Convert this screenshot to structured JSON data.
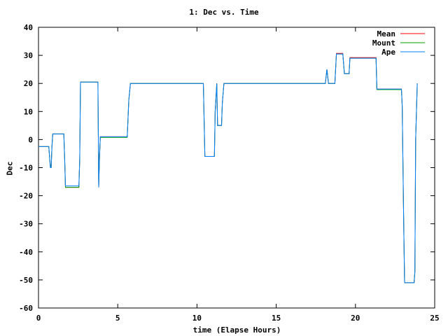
{
  "chart_data": {
    "type": "line",
    "title": "1: Dec vs. Time",
    "xlabel": "time (Elapse Hours)",
    "ylabel": "Dec",
    "xlim": [
      0,
      25
    ],
    "ylim": [
      -60,
      40
    ],
    "xticks": [
      0,
      5,
      10,
      15,
      20,
      25
    ],
    "yticks": [
      -60,
      -50,
      -40,
      -30,
      -20,
      -10,
      0,
      10,
      20,
      30,
      40
    ],
    "grid": false,
    "legend_position": "top-right",
    "series": [
      {
        "name": "Mean",
        "color": "#ff0000",
        "x": [
          0,
          0.65,
          0.75,
          0.8,
          0.85,
          0.9,
          1.0,
          1.6,
          1.65,
          1.7,
          2.55,
          2.6,
          2.65,
          3.75,
          3.8,
          3.85,
          3.9,
          4.0,
          5.6,
          5.7,
          5.8,
          10.4,
          10.5,
          11.1,
          11.15,
          11.25,
          11.3,
          11.55,
          11.6,
          11.7,
          18.1,
          18.2,
          18.3,
          18.7,
          18.8,
          19.2,
          19.3,
          19.6,
          19.65,
          21.3,
          21.35,
          22.9,
          22.95,
          23.05,
          23.1,
          23.7,
          23.75,
          23.8,
          23.9
        ],
        "y": [
          -2.5,
          -2.5,
          -10,
          -10,
          -2.5,
          2,
          2,
          2,
          -7,
          -17,
          -17,
          -7,
          20.5,
          20.5,
          -17,
          -6,
          1,
          1,
          1,
          14,
          20,
          20,
          -6,
          -6,
          10,
          20,
          5,
          5,
          13,
          20,
          20,
          25,
          20,
          20,
          30.7,
          30.7,
          23.5,
          23.5,
          29.2,
          29.2,
          18,
          18,
          12,
          -33,
          -51,
          -51,
          -47,
          0,
          20
        ]
      },
      {
        "name": "Mount",
        "color": "#00a000",
        "x": [
          0,
          0.65,
          0.75,
          0.8,
          0.85,
          0.9,
          1.0,
          1.6,
          1.65,
          1.7,
          2.55,
          2.6,
          2.65,
          3.75,
          3.8,
          3.85,
          3.9,
          4.0,
          5.6,
          5.7,
          5.8,
          10.4,
          10.5,
          11.1,
          11.15,
          11.25,
          11.3,
          11.55,
          11.6,
          11.7,
          18.1,
          18.2,
          18.3,
          18.7,
          18.8,
          19.2,
          19.3,
          19.6,
          19.65,
          21.3,
          21.35,
          22.9,
          22.95,
          23.05,
          23.1,
          23.7,
          23.75,
          23.8,
          23.9
        ],
        "y": [
          -2.5,
          -2.5,
          -10,
          -10,
          -2.5,
          2,
          2,
          2,
          -7,
          -17,
          -17,
          -7,
          20.5,
          20.5,
          -17,
          -6,
          0.8,
          0.8,
          0.8,
          14,
          20,
          20,
          -6,
          -6,
          10,
          20,
          5,
          5,
          13,
          20,
          20,
          25,
          20,
          20,
          30.5,
          30.5,
          23.5,
          23.5,
          29,
          29,
          17.8,
          17.8,
          12,
          -33,
          -51,
          -51,
          -47,
          0,
          20
        ]
      },
      {
        "name": "Ape",
        "color": "#0080ff",
        "x": [
          0,
          0.65,
          0.75,
          0.8,
          0.85,
          0.9,
          1.0,
          1.6,
          1.65,
          1.7,
          2.55,
          2.6,
          2.65,
          3.75,
          3.8,
          3.85,
          3.9,
          4.0,
          5.6,
          5.7,
          5.8,
          10.4,
          10.5,
          11.1,
          11.15,
          11.25,
          11.3,
          11.55,
          11.6,
          11.7,
          18.1,
          18.2,
          18.3,
          18.7,
          18.8,
          19.2,
          19.3,
          19.6,
          19.65,
          21.3,
          21.35,
          22.9,
          22.95,
          23.05,
          23.1,
          23.7,
          23.75,
          23.8,
          23.9
        ],
        "y": [
          -2.5,
          -2.5,
          -10,
          -10,
          -2.5,
          2,
          2,
          2,
          -7,
          -16.5,
          -16.5,
          -7,
          20.5,
          20.5,
          -17,
          -6,
          1,
          1,
          1,
          14,
          20,
          20,
          -6,
          -6,
          10,
          20,
          5,
          5,
          13,
          20,
          20,
          25,
          20,
          20,
          30.5,
          30.5,
          23.5,
          23.5,
          29,
          29,
          18,
          18,
          12,
          -33,
          -51,
          -51,
          -47,
          0,
          20
        ]
      }
    ]
  }
}
